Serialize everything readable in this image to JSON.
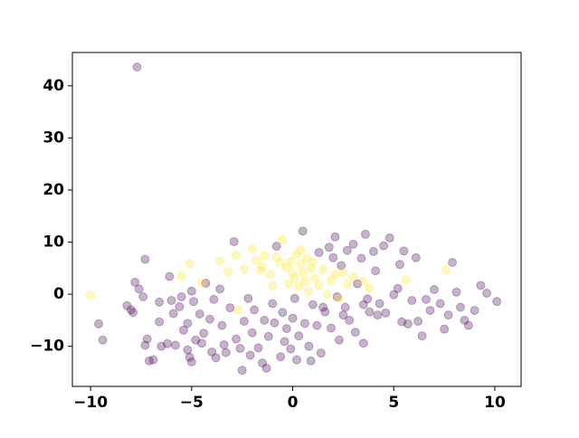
{
  "chart_data": {
    "type": "scatter",
    "xlim": [
      -10.9,
      11.3
    ],
    "ylim": [
      -17.7,
      46.4
    ],
    "xticks": [
      {
        "value": -10,
        "label": "−10"
      },
      {
        "value": -5,
        "label": "−5"
      },
      0,
      5,
      10
    ],
    "yticks": [
      {
        "value": -10,
        "label": "−10"
      },
      0,
      10,
      20,
      30,
      40
    ],
    "alpha": 0.3,
    "series": [
      {
        "color": "#440154",
        "x": [
          -7.7,
          -9.6,
          -9.4,
          -8.2,
          -8,
          -7.8,
          -7.6,
          -7.4,
          -7.9,
          -7.3,
          -7.2,
          -7.1,
          -6.9,
          -7.3,
          -6.6,
          -6.6,
          -6.5,
          -6.2,
          -6.1,
          -6,
          -5.9,
          -5.8,
          -5.6,
          -5.5,
          -5.4,
          -5.2,
          -5.2,
          -5.1,
          -5,
          -5,
          -4.9,
          -4.8,
          -4.6,
          -4.5,
          -4.4,
          -4.3,
          -4.1,
          -4,
          -3.9,
          -3.8,
          -3.6,
          -3.5,
          -3.4,
          -3.3,
          -3.1,
          -2.9,
          -2.8,
          -2.6,
          -2.5,
          -2.4,
          -2.2,
          -2.1,
          -2,
          -1.9,
          -1.7,
          -1.5,
          -1.4,
          -1.3,
          -1.2,
          -1,
          -0.9,
          -0.8,
          -0.6,
          -0.5,
          -0.4,
          -0.3,
          -0.1,
          0,
          0.1,
          0.2,
          0.3,
          0.5,
          0.6,
          0.8,
          0.9,
          1,
          1.2,
          1.3,
          1.4,
          1.6,
          1.8,
          1.9,
          2,
          2.1,
          2.2,
          2.3,
          2.4,
          2.6,
          2.7,
          2.8,
          3,
          3.1,
          3.2,
          3.4,
          3.5,
          3.6,
          3.7,
          3.8,
          4,
          4.1,
          4.3,
          4.5,
          4.6,
          4.8,
          5,
          5.2,
          5.4,
          5.5,
          5.7,
          5.9,
          6.1,
          6.2,
          6.4,
          6.6,
          6.8,
          7,
          7.3,
          7.5,
          7.7,
          7.9,
          8.1,
          8.3,
          8.5,
          8.7,
          9,
          9.3,
          9.6,
          10.1,
          5.3,
          3.5,
          2.5,
          1.5,
          4.2
        ],
        "values": [
          43.6,
          -5.7,
          -8.8,
          -2.2,
          -3,
          2.3,
          1,
          -0.5,
          -3.5,
          -9.8,
          -8.6,
          -12.8,
          -12.6,
          6.7,
          -1.5,
          -5.3,
          -10,
          -9.5,
          3.4,
          -1.2,
          -3.7,
          -9.8,
          -2.4,
          -0.5,
          -6.9,
          -5.6,
          -10.7,
          -12.1,
          -13,
          0.6,
          -1.4,
          -8.8,
          -3.8,
          -9.4,
          -7.5,
          2.1,
          -4.8,
          -11.1,
          -1,
          -12.2,
          1,
          -6,
          -9.7,
          -11.2,
          -2.6,
          10.1,
          -8.6,
          -10.4,
          -14.6,
          -5.2,
          -0.8,
          -11.7,
          -7.4,
          -3,
          -10.3,
          -13.2,
          -5,
          -14.2,
          -8.1,
          -1.8,
          -5.5,
          9.2,
          -12,
          -3.5,
          -9.1,
          -6.6,
          -10.5,
          -4.6,
          -0.8,
          -12.6,
          -8,
          12.1,
          -5.6,
          -10,
          -12.8,
          -2,
          -6,
          8,
          -11.3,
          -3.4,
          9,
          -6.5,
          7,
          11,
          -0.5,
          -8.8,
          5.5,
          -2.5,
          8.4,
          -5,
          9.6,
          -7.3,
          2,
          6.9,
          -9.4,
          11.5,
          -0.9,
          -3.4,
          8.2,
          4.5,
          -1.8,
          9.3,
          -3.6,
          10.8,
          -0.1,
          1.1,
          -5.3,
          8.3,
          -5.7,
          -1.2,
          7,
          -5.2,
          -8,
          -1,
          -3.1,
          0.9,
          -1.8,
          -6.7,
          -4,
          6.1,
          0.4,
          -2.5,
          -5,
          -6,
          -3.1,
          1.7,
          0.2,
          -1.4,
          5.7,
          -2,
          -4,
          -2.5,
          -4
        ]
      },
      {
        "color": "#fde725",
        "x": [
          -10,
          -5.5,
          -5.1,
          -4.5,
          -3.6,
          -3.2,
          -2.8,
          -2.7,
          -2.4,
          -2,
          -1.8,
          -1.6,
          -1.4,
          -1.1,
          -1,
          -0.8,
          -0.5,
          -0.3,
          -0.2,
          -0.1,
          0,
          0.1,
          0.2,
          0.3,
          0.4,
          0.5,
          0.6,
          0.7,
          0.8,
          0.9,
          1.1,
          1.3,
          1.5,
          1.7,
          1.9,
          2.1,
          2.3,
          2.5,
          2.7,
          3,
          3.5,
          3.8,
          5.6,
          7.6,
          -0.6,
          0.4,
          1,
          -1.5
        ],
        "values": [
          -0.2,
          3.5,
          5.9,
          2.1,
          6.3,
          4.3,
          7.5,
          -3,
          4.8,
          8.7,
          6.5,
          4.6,
          7.4,
          3.8,
          1.6,
          7.1,
          10.5,
          5.2,
          2,
          6.3,
          4,
          3.1,
          7.6,
          1.5,
          5.8,
          4.2,
          2.5,
          6.9,
          0.5,
          5,
          3,
          1.7,
          4.8,
          0,
          2.6,
          3.8,
          -0.8,
          4.2,
          1.9,
          3.3,
          2.5,
          1.2,
          2.8,
          4.6,
          6,
          8.5,
          6.2,
          5.3
        ]
      }
    ]
  }
}
